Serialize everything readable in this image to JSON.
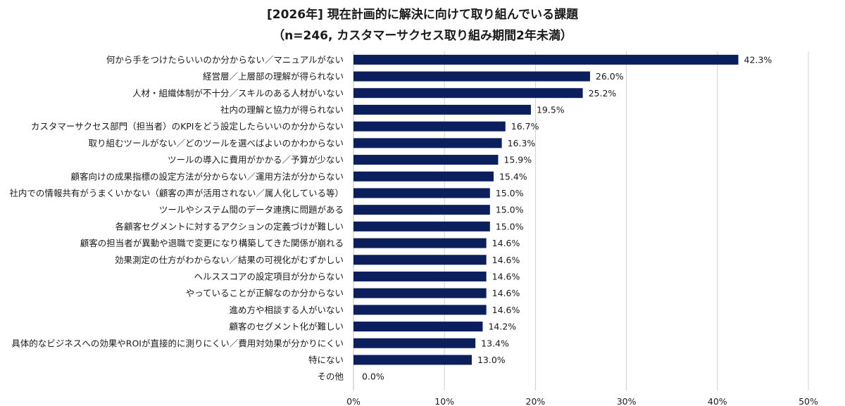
{
  "chart_data": {
    "type": "bar",
    "orientation": "horizontal",
    "title": "[2026年] 現在計画的に解決に向けて取り組んでいる課題",
    "subtitle": "（n=246, カスタマーサクセス取り組み期間2年未満）",
    "categories": [
      "何から手をつけたらいいのか分からない／マニュアルがない",
      "経営層／上層部の理解が得られない",
      "人材・組織体制が不十分／スキルのある人材がいない",
      "社内の理解と協力が得られない",
      "カスタマーサクセス部門（担当者）のKPIをどう設定したらいいのか分からない",
      "取り組むツールがない／どのツールを選べばよいのかわからない",
      "ツールの導入に費用がかかる／予算が少ない",
      "顧客向けの成果指標の設定方法が分からない／運用方法が分からない",
      "社内での情報共有がうまくいかない（顧客の声が活用されない／属人化している等）",
      "ツールやシステム間のデータ連携に問題がある",
      "各顧客セグメントに対するアクションの定義づけが難しい",
      "顧客の担当者が異動や退職で変更になり構築してきた関係が崩れる",
      "効果測定の仕方がわからない／結果の可視化がむずかしい",
      "ヘルススコアの設定項目が分からない",
      "やっていることが正解なのか分からない",
      "進め方や相談する人がいない",
      "顧客のセグメント化が難しい",
      "具体的なビジネスへの効果やROIが直接的に測りにくい／費用対効果が分かりにくい",
      "特にない",
      "その他"
    ],
    "values": [
      42.3,
      26.0,
      25.2,
      19.5,
      16.7,
      16.3,
      15.9,
      15.4,
      15.0,
      15.0,
      15.0,
      14.6,
      14.6,
      14.6,
      14.6,
      14.6,
      14.2,
      13.4,
      13.0,
      0.0
    ],
    "value_labels": [
      "42.3%",
      "26.0%",
      "25.2%",
      "19.5%",
      "16.7%",
      "16.3%",
      "15.9%",
      "15.4%",
      "15.0%",
      "15.0%",
      "15.0%",
      "14.6%",
      "14.6%",
      "14.6%",
      "14.6%",
      "14.6%",
      "14.2%",
      "13.4%",
      "13.0%",
      "0.0%"
    ],
    "xlim": [
      0,
      50
    ],
    "xticks": [
      0,
      10,
      20,
      30,
      40,
      50
    ],
    "xtick_labels": [
      "0%",
      "10%",
      "20%",
      "30%",
      "40%",
      "50%"
    ],
    "grid": true,
    "bar_color": "#0a1f5c"
  }
}
